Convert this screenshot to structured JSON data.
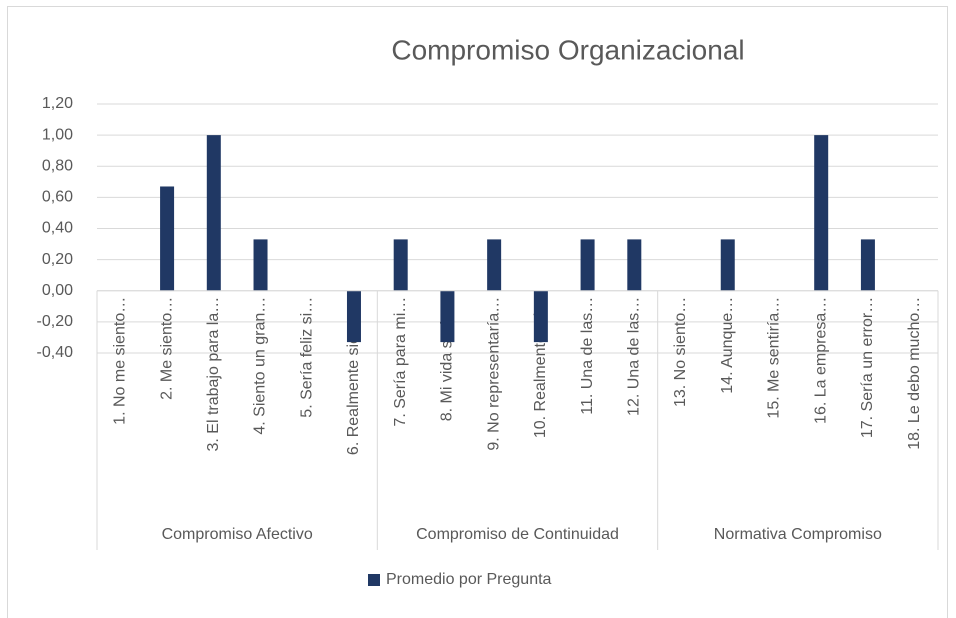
{
  "chart_data": {
    "type": "bar",
    "title": "Compromiso Organizacional",
    "groups": [
      {
        "name": "Compromiso Afectivo",
        "categories": [
          "1. No me siento…",
          "2. Me siento…",
          "3. El trabajo para la…",
          "4. Siento un gran…",
          "5. Sería feliz si…",
          "6. Realmente siento…"
        ]
      },
      {
        "name": "Compromiso de Continuidad",
        "categories": [
          "7. Sería para mi…",
          "8. Mi vida sería…",
          "9. No representaría…",
          "10. Realmente, el…",
          "11. Una de las…",
          "12. Una de las…"
        ]
      },
      {
        "name": "Normativa Compromiso",
        "categories": [
          "13. No siento…",
          "14. Aunque…",
          "15. Me sentiría…",
          "16. La empresa…",
          "17. Sería un error…",
          "18. Le debo mucho…"
        ]
      }
    ],
    "series": [
      {
        "name": "Promedio por Pregunta",
        "color": "#203864",
        "values": [
          0,
          0.67,
          1.0,
          0.33,
          0,
          -0.33,
          0.33,
          -0.33,
          0.33,
          -0.33,
          0.33,
          0.33,
          0,
          0.33,
          0,
          1.0,
          0.33,
          0
        ]
      }
    ],
    "ylim": [
      -0.4,
      1.2
    ],
    "yticks": [
      {
        "value": -0.4,
        "label": "-0,40"
      },
      {
        "value": -0.2,
        "label": "-0,20"
      },
      {
        "value": 0,
        "label": "0,00"
      },
      {
        "value": 0.2,
        "label": "0,20"
      },
      {
        "value": 0.4,
        "label": "0,40"
      },
      {
        "value": 0.6,
        "label": "0,60"
      },
      {
        "value": 0.8,
        "label": "0,80"
      },
      {
        "value": 1.0,
        "label": "1,00"
      },
      {
        "value": 1.2,
        "label": "1,20"
      }
    ],
    "grid": true,
    "legend": "bottom"
  }
}
